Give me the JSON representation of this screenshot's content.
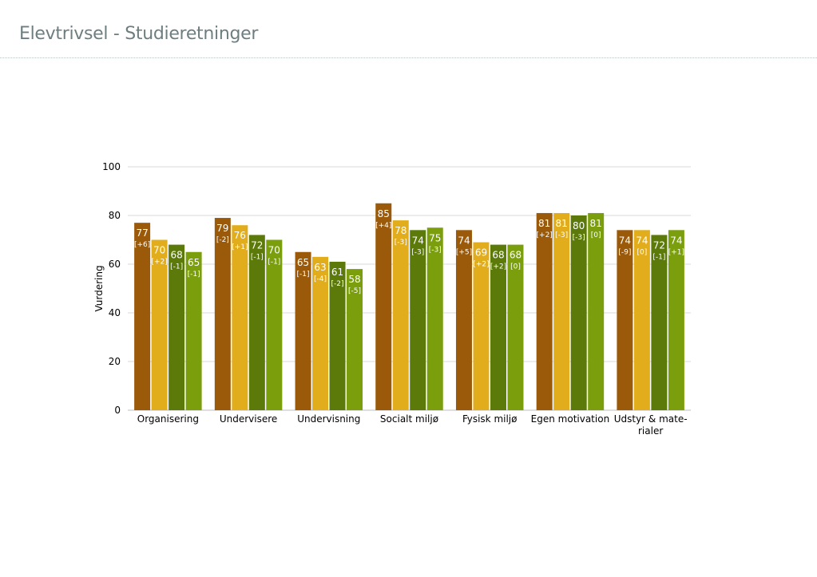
{
  "page": {
    "title": "Elevtrivsel - Studieretninger"
  },
  "chart_data": {
    "type": "bar",
    "ylabel": "Vurdering",
    "ylim": [
      0,
      100
    ],
    "yticks": [
      0,
      20,
      40,
      60,
      80,
      100
    ],
    "grid": true,
    "categories": [
      [
        "Organisering"
      ],
      [
        "Undervisere"
      ],
      [
        "Undervisning"
      ],
      [
        "Socialt miljø"
      ],
      [
        "Fysisk miljø"
      ],
      [
        "Egen motivation"
      ],
      [
        "Udstyr & mate-",
        "rialer"
      ]
    ],
    "series": [
      {
        "color": "#9a5a0a",
        "values": [
          77,
          79,
          65,
          85,
          74,
          81,
          74
        ],
        "changes": [
          "[+6]",
          "[-2]",
          "[-1]",
          "[+4]",
          "[+5]",
          "[+2]",
          "[-9]"
        ]
      },
      {
        "color": "#e2ad1c",
        "values": [
          70,
          76,
          63,
          78,
          69,
          81,
          74
        ],
        "changes": [
          "[+2]",
          "[+1]",
          "[-4]",
          "[-3]",
          "[+2]",
          "[-3]",
          "[0]"
        ]
      },
      {
        "color": "#5b7a0a",
        "values": [
          68,
          72,
          61,
          74,
          68,
          80,
          72
        ],
        "changes": [
          "[-1]",
          "[-1]",
          "[-2]",
          "[-3]",
          "[+2]",
          "[-3]",
          "[-1]"
        ]
      },
      {
        "color": "#7a9e0c",
        "values": [
          65,
          70,
          58,
          75,
          68,
          81,
          74
        ],
        "changes": [
          "[-1]",
          "[-1]",
          "[-5]",
          "[-3]",
          "[0]",
          "[0]",
          "[+1]"
        ]
      }
    ]
  }
}
